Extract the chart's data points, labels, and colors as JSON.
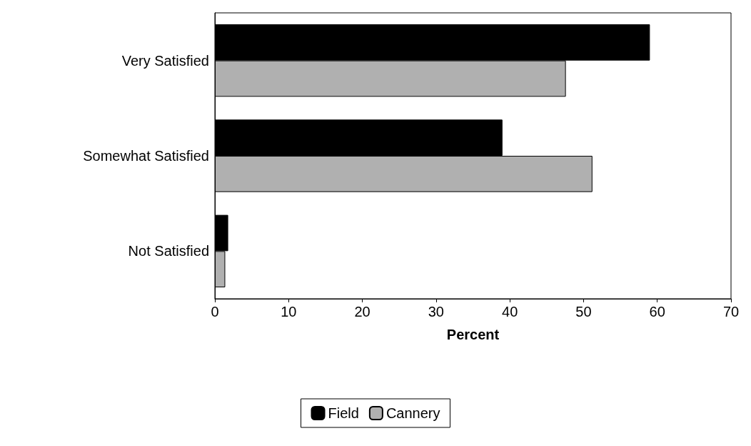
{
  "chart_data": {
    "type": "bar",
    "orientation": "horizontal",
    "xlabel": "Percent",
    "categories": [
      "Very Satisfied",
      "Somewhat Satisfied",
      "Not Satisfied"
    ],
    "series": [
      {
        "name": "Field",
        "color": "#000000",
        "values": [
          59,
          39,
          1.8
        ]
      },
      {
        "name": "Cannery",
        "color": "#b0b0b0",
        "values": [
          47.6,
          51.2,
          1.4
        ]
      }
    ],
    "xlim": [
      0,
      70
    ],
    "xticks": [
      0,
      10,
      20,
      30,
      40,
      50,
      60,
      70
    ],
    "grid": false,
    "legend": "bottom"
  }
}
